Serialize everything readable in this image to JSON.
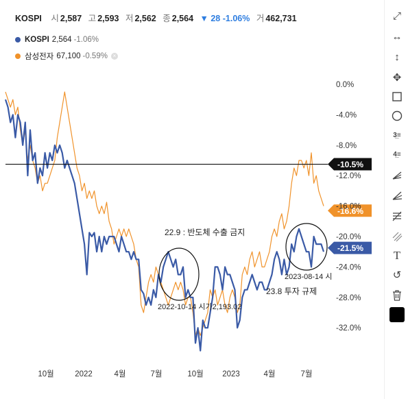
{
  "header": {
    "symbol": "KOSPI",
    "open_label": "시",
    "open": "2,587",
    "high_label": "고",
    "high": "2,593",
    "low_label": "저",
    "low": "2,562",
    "close_label": "종",
    "close": "2,564",
    "change": "▼ 28 -1.06%",
    "volume_label": "거",
    "volume": "462,731"
  },
  "legend": [
    {
      "name": "KOSPI",
      "value": "2,564",
      "pct": "-1.06%",
      "color": "#3a5aa6"
    },
    {
      "name": "삼성전자",
      "value": "67,100",
      "pct": "-0.59%",
      "color": "#f0922a",
      "remove": "×"
    }
  ],
  "toolbar": [
    "expand-icon",
    "horizontal-line-icon",
    "vertical-line-icon",
    "crosshair-icon",
    "rectangle-icon",
    "circle-icon",
    "fib-retracement-icon",
    "fib-extension-icon",
    "gann-icon",
    "fan-icon",
    "pitchfork-icon",
    "parallel-channel-icon",
    "text-icon",
    "undo-icon",
    "trash-icon",
    "color-swatch-icon"
  ],
  "chart_data": {
    "type": "line",
    "x_ticks": [
      "10월",
      "2022",
      "4월",
      "7월",
      "10월",
      "2023",
      "4월",
      "7월"
    ],
    "y_ticks": [
      "0.0%",
      "-4.0%",
      "-8.0%",
      "-12.0%",
      "-16.0%",
      "-20.0%",
      "-24.0%",
      "-28.0%",
      "-32.0%"
    ],
    "ylim": [
      -35.5,
      1.5
    ],
    "x_range": [
      "2021-08",
      "2023-09"
    ],
    "series": [
      {
        "name": "KOSPI",
        "color": "#3a5aa6",
        "values": [
          [
            0,
            -2
          ],
          [
            1,
            -3
          ],
          [
            2,
            -5
          ],
          [
            3,
            -4
          ],
          [
            4,
            -7
          ],
          [
            5,
            -4
          ],
          [
            6,
            -5
          ],
          [
            7,
            -8
          ],
          [
            8,
            -5
          ],
          [
            9,
            -12
          ],
          [
            10,
            -6
          ],
          [
            11,
            -10
          ],
          [
            12,
            -9
          ],
          [
            13,
            -13
          ],
          [
            14,
            -11
          ],
          [
            15,
            -12
          ],
          [
            16,
            -9
          ],
          [
            17,
            -11
          ],
          [
            18,
            -9
          ],
          [
            19,
            -10
          ],
          [
            20,
            -8
          ],
          [
            21,
            -9
          ],
          [
            22,
            -8
          ],
          [
            23,
            -9
          ],
          [
            24,
            -11
          ],
          [
            25,
            -10
          ],
          [
            26,
            -11
          ],
          [
            27,
            -12
          ],
          [
            28,
            -13
          ],
          [
            29,
            -15
          ],
          [
            30,
            -17
          ],
          [
            31,
            -19
          ],
          [
            32,
            -21
          ],
          [
            33,
            -25
          ],
          [
            34,
            -19.5
          ],
          [
            35,
            -20
          ],
          [
            36,
            -19.5
          ],
          [
            37,
            -22
          ],
          [
            38,
            -20
          ],
          [
            39,
            -22
          ],
          [
            40,
            -20
          ],
          [
            41,
            -21
          ],
          [
            42,
            -20
          ],
          [
            43,
            -20
          ],
          [
            44,
            -20
          ],
          [
            45,
            -21
          ],
          [
            46,
            -22
          ],
          [
            47,
            -20
          ],
          [
            48,
            -21
          ],
          [
            49,
            -22
          ],
          [
            50,
            -22
          ],
          [
            51,
            -23
          ],
          [
            52,
            -22
          ],
          [
            53,
            -23
          ],
          [
            54,
            -23
          ],
          [
            55,
            -27
          ],
          [
            56,
            -27.5
          ],
          [
            57,
            -29
          ],
          [
            58,
            -28
          ],
          [
            59,
            -29
          ],
          [
            60,
            -27
          ],
          [
            61,
            -28
          ],
          [
            62,
            -25
          ],
          [
            63,
            -26
          ],
          [
            64,
            -24
          ],
          [
            65,
            -23
          ],
          [
            66,
            -22
          ],
          [
            67,
            -23
          ],
          [
            68,
            -24
          ],
          [
            69,
            -23
          ],
          [
            70,
            -25
          ],
          [
            71,
            -25
          ],
          [
            72,
            -24
          ],
          [
            73,
            -28
          ],
          [
            74,
            -27
          ],
          [
            75,
            -28
          ],
          [
            76,
            -28
          ],
          [
            77,
            -34
          ],
          [
            78,
            -32
          ],
          [
            79,
            -35
          ],
          [
            80,
            -31
          ],
          [
            81,
            -32
          ],
          [
            82,
            -32
          ],
          [
            83,
            -30
          ],
          [
            84,
            -28
          ],
          [
            85,
            -24
          ],
          [
            86,
            -24
          ],
          [
            87,
            -25
          ],
          [
            88,
            -27
          ],
          [
            89,
            -24
          ],
          [
            90,
            -25
          ],
          [
            91,
            -25
          ],
          [
            92,
            -26
          ],
          [
            93,
            -27
          ],
          [
            94,
            -32
          ],
          [
            95,
            -31
          ],
          [
            96,
            -28
          ],
          [
            97,
            -27
          ],
          [
            98,
            -27
          ],
          [
            99,
            -26
          ],
          [
            100,
            -25
          ],
          [
            101,
            -26
          ],
          [
            102,
            -27
          ],
          [
            103,
            -26
          ],
          [
            104,
            -26
          ],
          [
            105,
            -27
          ],
          [
            106,
            -27
          ],
          [
            107,
            -26
          ],
          [
            108,
            -25
          ],
          [
            109,
            -23
          ],
          [
            110,
            -22
          ],
          [
            111,
            -23
          ],
          [
            112,
            -25
          ],
          [
            113,
            -23
          ],
          [
            114,
            -25
          ],
          [
            115,
            -24
          ],
          [
            116,
            -21
          ],
          [
            117,
            -22
          ],
          [
            118,
            -20
          ],
          [
            119,
            -19
          ],
          [
            120,
            -20
          ],
          [
            121,
            -21
          ],
          [
            122,
            -22
          ],
          [
            123,
            -22
          ],
          [
            124,
            -24
          ],
          [
            125,
            -20
          ],
          [
            126,
            -21
          ],
          [
            127,
            -21
          ],
          [
            128,
            -21
          ],
          [
            129,
            -22
          ]
        ]
      },
      {
        "name": "삼성전자",
        "color": "#f0922a",
        "values": [
          [
            0,
            -1
          ],
          [
            1,
            -2
          ],
          [
            2,
            -3
          ],
          [
            3,
            -2
          ],
          [
            4,
            -4
          ],
          [
            5,
            -3
          ],
          [
            6,
            -6
          ],
          [
            7,
            -8
          ],
          [
            8,
            -6
          ],
          [
            9,
            -10
          ],
          [
            10,
            -8
          ],
          [
            11,
            -10
          ],
          [
            12,
            -11
          ],
          [
            13,
            -13
          ],
          [
            14,
            -12
          ],
          [
            15,
            -14
          ],
          [
            16,
            -13
          ],
          [
            17,
            -13
          ],
          [
            18,
            -12
          ],
          [
            19,
            -11
          ],
          [
            20,
            -10
          ],
          [
            21,
            -7
          ],
          [
            22,
            -5
          ],
          [
            23,
            -3
          ],
          [
            24,
            -1
          ],
          [
            25,
            -3
          ],
          [
            26,
            -5
          ],
          [
            27,
            -7
          ],
          [
            28,
            -9
          ],
          [
            29,
            -11
          ],
          [
            30,
            -12
          ],
          [
            31,
            -14
          ],
          [
            32,
            -13
          ],
          [
            33,
            -15
          ],
          [
            34,
            -14
          ],
          [
            35,
            -15
          ],
          [
            36,
            -14
          ],
          [
            37,
            -16
          ],
          [
            38,
            -17
          ],
          [
            39,
            -16
          ],
          [
            40,
            -17
          ],
          [
            41,
            -15.5
          ],
          [
            42,
            -18
          ],
          [
            43,
            -19
          ],
          [
            44,
            -21
          ],
          [
            45,
            -20
          ],
          [
            46,
            -19
          ],
          [
            47,
            -20
          ],
          [
            48,
            -19
          ],
          [
            49,
            -20
          ],
          [
            50,
            -19
          ],
          [
            51,
            -20
          ],
          [
            52,
            -21
          ],
          [
            53,
            -23
          ],
          [
            54,
            -24
          ],
          [
            55,
            -29
          ],
          [
            56,
            -30
          ],
          [
            57,
            -28
          ],
          [
            58,
            -26
          ],
          [
            59,
            -25
          ],
          [
            60,
            -26
          ],
          [
            61,
            -24
          ],
          [
            62,
            -25
          ],
          [
            63,
            -26
          ],
          [
            64,
            -27
          ],
          [
            65,
            -28
          ],
          [
            66,
            -29
          ],
          [
            67,
            -28
          ],
          [
            68,
            -27
          ],
          [
            69,
            -26
          ],
          [
            70,
            -27
          ],
          [
            71,
            -26
          ],
          [
            72,
            -27
          ],
          [
            73,
            -29
          ],
          [
            74,
            -28
          ],
          [
            75,
            -28
          ],
          [
            76,
            -30
          ],
          [
            77,
            -33
          ],
          [
            78,
            -32
          ],
          [
            79,
            -33
          ],
          [
            80,
            -32
          ],
          [
            81,
            -31
          ],
          [
            82,
            -30
          ],
          [
            83,
            -27
          ],
          [
            84,
            -28
          ],
          [
            85,
            -27
          ],
          [
            86,
            -29
          ],
          [
            87,
            -28
          ],
          [
            88,
            -27
          ],
          [
            89,
            -29
          ],
          [
            90,
            -30
          ],
          [
            91,
            -28
          ],
          [
            92,
            -27
          ],
          [
            93,
            -28
          ],
          [
            94,
            -30
          ],
          [
            95,
            -29
          ],
          [
            96,
            -25
          ],
          [
            97,
            -24
          ],
          [
            98,
            -25
          ],
          [
            99,
            -23
          ],
          [
            100,
            -22
          ],
          [
            101,
            -24
          ],
          [
            102,
            -23
          ],
          [
            103,
            -22
          ],
          [
            104,
            -24
          ],
          [
            105,
            -24
          ],
          [
            106,
            -23
          ],
          [
            107,
            -22
          ],
          [
            108,
            -20
          ],
          [
            109,
            -19
          ],
          [
            110,
            -20
          ],
          [
            111,
            -18
          ],
          [
            112,
            -17
          ],
          [
            113,
            -19
          ],
          [
            114,
            -18
          ],
          [
            115,
            -16
          ],
          [
            116,
            -13
          ],
          [
            117,
            -11
          ],
          [
            118,
            -12
          ],
          [
            119,
            -10
          ],
          [
            120,
            -10
          ],
          [
            121,
            -11
          ],
          [
            122,
            -10
          ],
          [
            123,
            -12
          ],
          [
            124,
            -9
          ],
          [
            125,
            -13
          ],
          [
            126,
            -12
          ],
          [
            127,
            -14
          ],
          [
            128,
            -15
          ],
          [
            129,
            -16
          ]
        ]
      }
    ],
    "horizontal_line": {
      "value": -10.5,
      "label": "-10.5%",
      "color": "#111111"
    },
    "last_value_labels": [
      {
        "value": -16.6,
        "label": "-16.6%",
        "color": "#f0922a",
        "series": "삼성전자"
      },
      {
        "value": -21.5,
        "label": "-21.5%",
        "color": "#3a5aa6",
        "series": "KOSPI"
      }
    ],
    "annotations": [
      {
        "text": "22.9 : 반도체 수출 금지"
      },
      {
        "text": "2022-10-14 시가2,193.02"
      },
      {
        "text": "23.8 투자 규제"
      },
      {
        "text": "2023-08-14 시"
      }
    ]
  }
}
